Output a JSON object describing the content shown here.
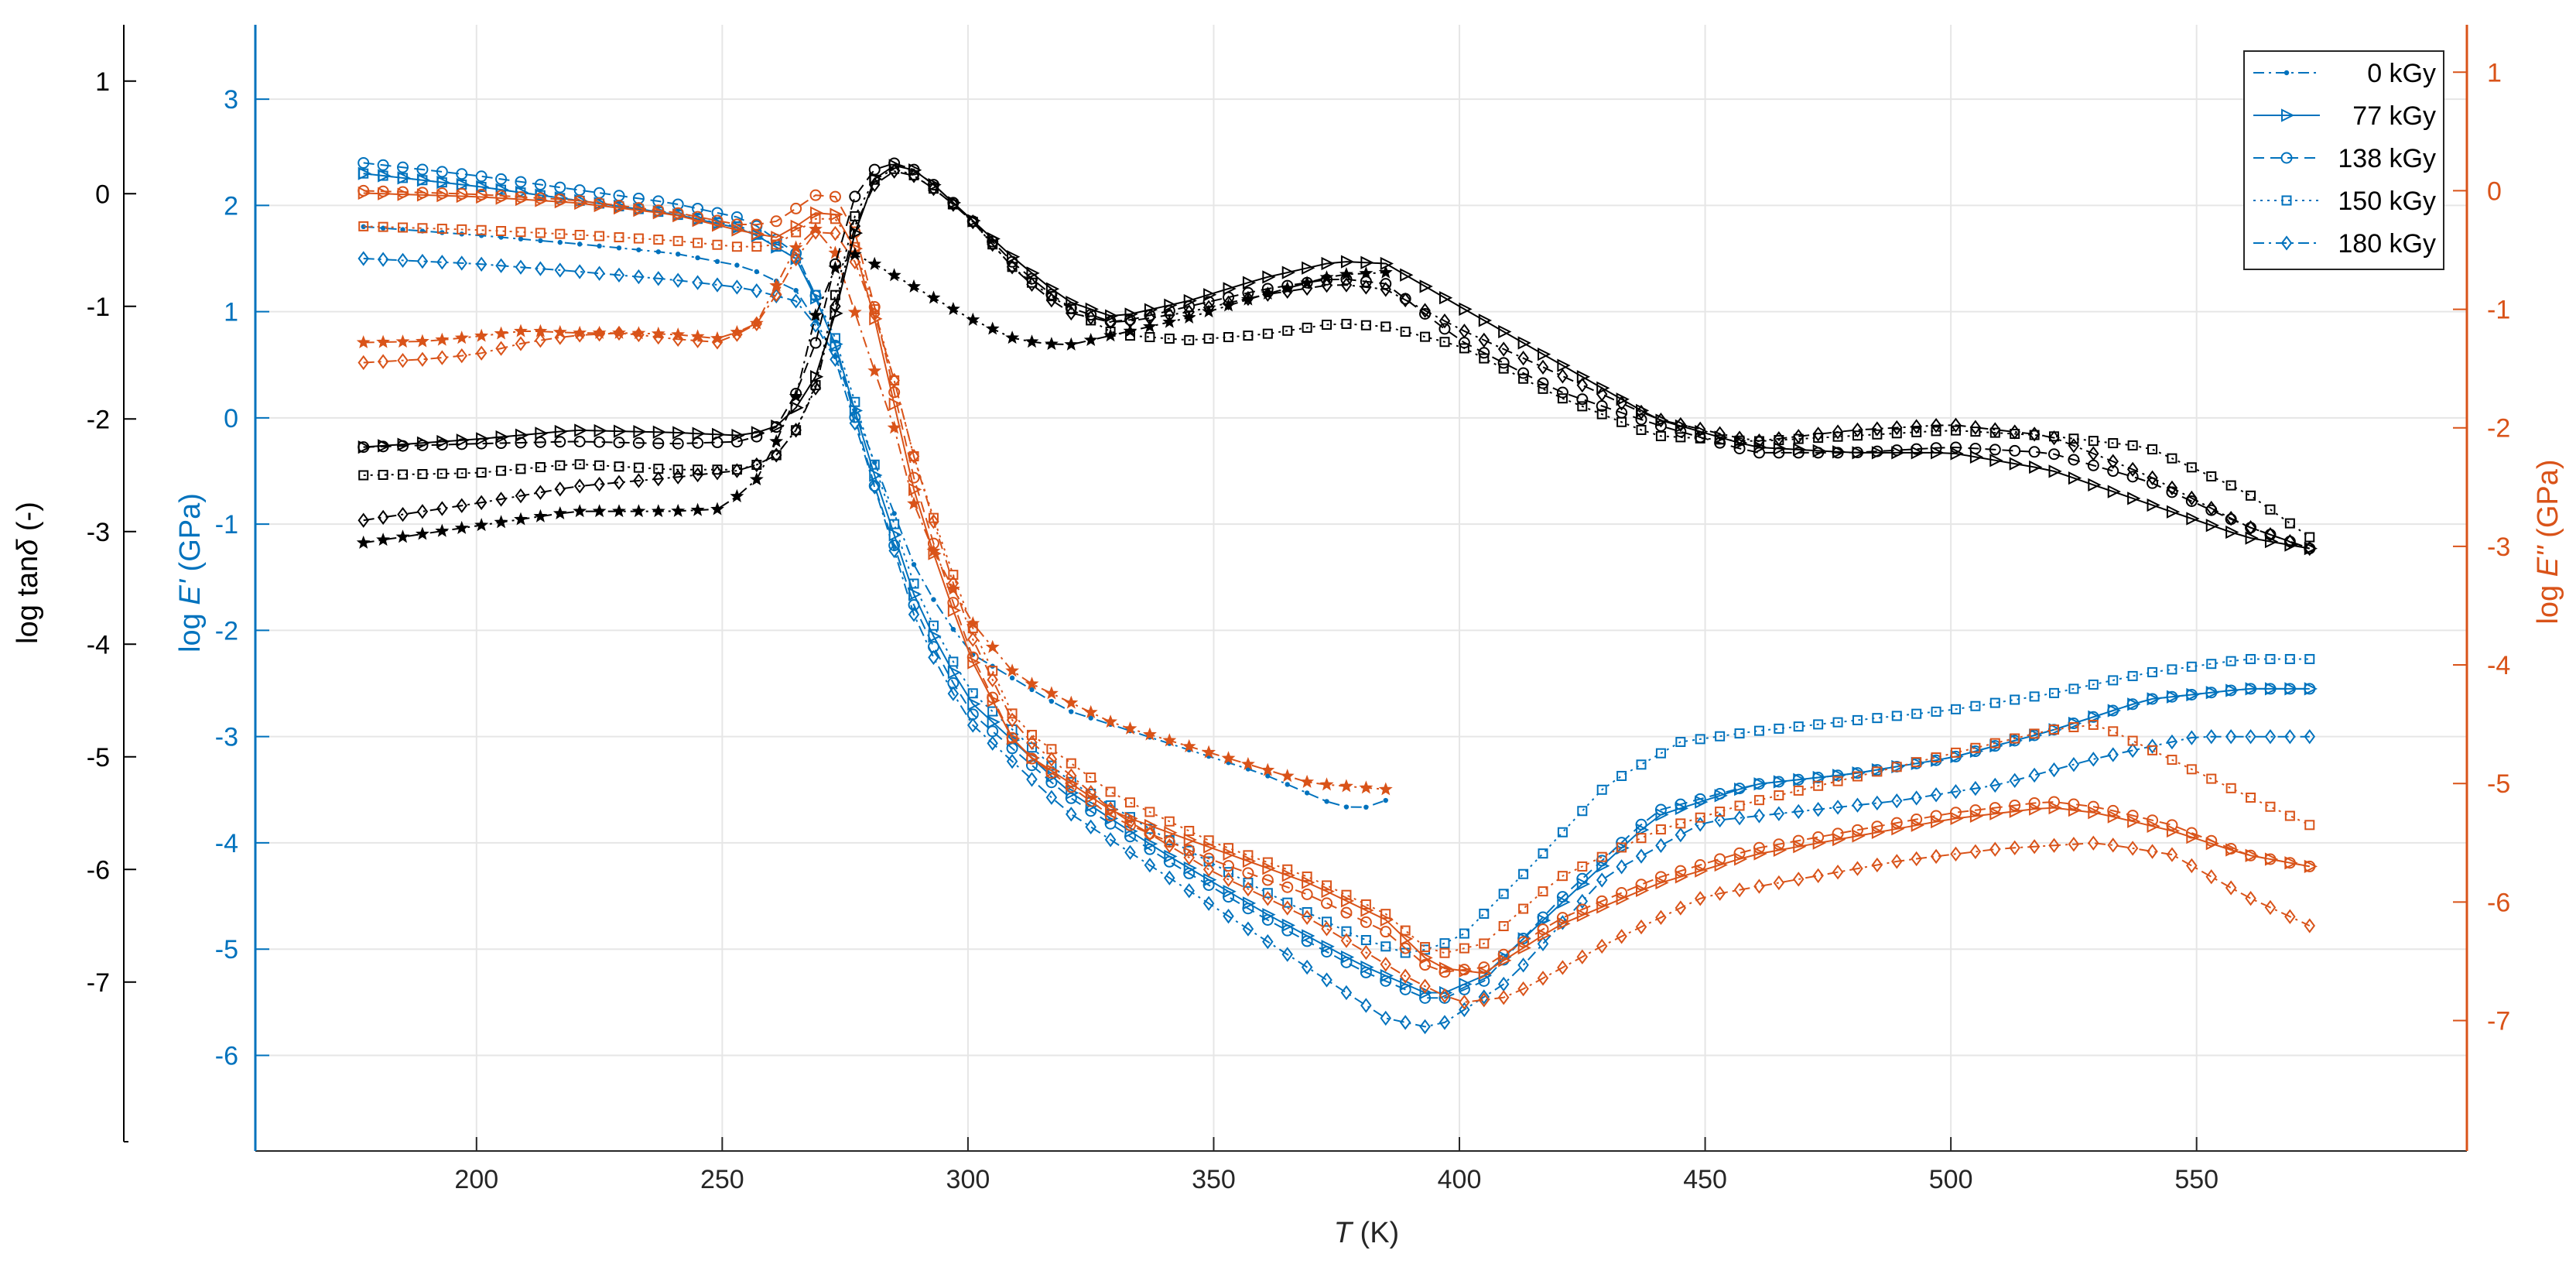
{
  "chart_data": {
    "type": "line",
    "title": "",
    "xlabel_var": "T",
    "xlabel_unit": " (K)",
    "xlim": [
      155,
      605
    ],
    "xticks": [
      200,
      250,
      300,
      350,
      400,
      450,
      500,
      550
    ],
    "axes": {
      "tan": {
        "label_prefix": "log tan",
        "label_var": "δ",
        "label_suffix": " (-)",
        "ylim": [
          -8.5,
          1.5
        ],
        "ticks": [
          1,
          0,
          -1,
          -2,
          -3,
          -4,
          -5,
          -6,
          -7
        ],
        "color": "#000000"
      },
      "E1": {
        "label_prefix": "log ",
        "label_var": "E'",
        "label_suffix": " (GPa)",
        "ylim": [
          -6.9,
          3.7
        ],
        "ticks": [
          3,
          2,
          1,
          0,
          -1,
          -2,
          -3,
          -4,
          -5,
          -6
        ],
        "color": "#0072BD"
      },
      "E2": {
        "label_prefix": "log ",
        "label_var": "E''",
        "label_suffix": " (GPa)",
        "ylim": [
          -8.1,
          1.4
        ],
        "ticks": [
          1,
          0,
          -1,
          -2,
          -3,
          -4,
          -5,
          -6,
          -7
        ],
        "color": "#D95319"
      }
    },
    "legend": {
      "position": "top-right",
      "entries": [
        {
          "label": "0 kGy",
          "marker": "dot",
          "dash": "dashdot"
        },
        {
          "label": "77 kGy",
          "marker": "triangle",
          "dash": "solid"
        },
        {
          "label": "138 kGy",
          "marker": "circle",
          "dash": "dashed"
        },
        {
          "label": "150 kGy",
          "marker": "square",
          "dash": "dotted"
        },
        {
          "label": "180 kGy",
          "marker": "diamond",
          "dash": "dashdot"
        }
      ]
    },
    "series": [
      {
        "name": "0 kGy E'",
        "axis": "E1",
        "marker": "dot",
        "dash": "dashdot",
        "x_range": [
          177,
          385
        ],
        "x": [
          177,
          200,
          220,
          240,
          255,
          265,
          272,
          280,
          290,
          300,
          320,
          340,
          360,
          375,
          380,
          385
        ],
        "y": [
          1.8,
          1.72,
          1.64,
          1.55,
          1.42,
          1.2,
          0.7,
          -0.3,
          -1.5,
          -2.2,
          -2.75,
          -3.05,
          -3.35,
          -3.65,
          -3.68,
          -3.6
        ]
      },
      {
        "name": "77 kGy E'",
        "axis": "E1",
        "marker": "triangle",
        "dash": "solid",
        "x_range": [
          177,
          573
        ],
        "x": [
          177,
          200,
          220,
          240,
          255,
          265,
          272,
          280,
          290,
          300,
          320,
          340,
          360,
          380,
          395,
          405,
          420,
          440,
          460,
          480,
          500,
          520,
          540,
          560,
          573
        ],
        "y": [
          2.3,
          2.18,
          2.05,
          1.92,
          1.77,
          1.5,
          0.85,
          -0.4,
          -1.8,
          -2.65,
          -3.5,
          -4.1,
          -4.65,
          -5.15,
          -5.45,
          -5.25,
          -4.6,
          -3.75,
          -3.45,
          -3.35,
          -3.2,
          -2.95,
          -2.65,
          -2.55,
          -2.55
        ]
      },
      {
        "name": "138 kGy E'",
        "axis": "E1",
        "marker": "circle",
        "dash": "dashed",
        "x_range": [
          177,
          573
        ],
        "x": [
          177,
          200,
          220,
          240,
          255,
          265,
          272,
          280,
          290,
          300,
          320,
          340,
          360,
          380,
          395,
          405,
          420,
          440,
          460,
          480,
          500,
          520,
          540,
          560,
          573
        ],
        "y": [
          2.4,
          2.28,
          2.15,
          2.02,
          1.87,
          1.55,
          0.85,
          -0.5,
          -1.9,
          -2.75,
          -3.55,
          -4.15,
          -4.7,
          -5.2,
          -5.5,
          -5.3,
          -4.55,
          -3.7,
          -3.45,
          -3.35,
          -3.2,
          -2.95,
          -2.65,
          -2.55,
          -2.55
        ]
      },
      {
        "name": "150 kGy E'",
        "axis": "E1",
        "marker": "square",
        "dash": "dotted",
        "x_range": [
          177,
          573
        ],
        "x": [
          177,
          200,
          220,
          240,
          255,
          265,
          272,
          280,
          290,
          300,
          320,
          340,
          360,
          380,
          390,
          400,
          415,
          430,
          445,
          460,
          480,
          500,
          520,
          540,
          560,
          573
        ],
        "y": [
          2.3,
          2.18,
          2.05,
          1.92,
          1.78,
          1.5,
          0.9,
          -0.3,
          -1.7,
          -2.55,
          -3.4,
          -3.95,
          -4.45,
          -4.9,
          -5.05,
          -4.9,
          -4.2,
          -3.45,
          -3.05,
          -2.95,
          -2.85,
          -2.75,
          -2.6,
          -2.4,
          -2.27,
          -2.27
        ]
      },
      {
        "name": "180 kGy E'",
        "axis": "E1",
        "marker": "diamond",
        "dash": "dashdot",
        "x_range": [
          177,
          573
        ],
        "x": [
          177,
          200,
          220,
          240,
          255,
          265,
          272,
          280,
          290,
          300,
          320,
          340,
          360,
          375,
          385,
          395,
          410,
          430,
          450,
          470,
          490,
          510,
          530,
          550,
          573
        ],
        "y": [
          1.5,
          1.45,
          1.38,
          1.3,
          1.22,
          1.1,
          0.7,
          -0.5,
          -2.0,
          -2.85,
          -3.7,
          -4.3,
          -4.9,
          -5.35,
          -5.65,
          -5.75,
          -5.3,
          -4.3,
          -3.8,
          -3.7,
          -3.6,
          -3.45,
          -3.2,
          -3.0,
          -3.0
        ]
      },
      {
        "name": "0 kGy E''",
        "axis": "E2",
        "marker": "star",
        "dash": "dashdot",
        "x_range": [
          177,
          385
        ],
        "x": [
          177,
          190,
          200,
          210,
          220,
          230,
          240,
          250,
          258,
          263,
          268,
          272,
          276,
          280,
          285,
          290,
          300,
          310,
          330,
          350,
          370,
          385
        ],
        "y": [
          -1.28,
          -1.27,
          -1.23,
          -1.18,
          -1.2,
          -1.2,
          -1.21,
          -1.25,
          -1.1,
          -0.6,
          -0.3,
          -0.4,
          -0.9,
          -1.4,
          -2.0,
          -2.8,
          -3.6,
          -4.1,
          -4.5,
          -4.75,
          -5.0,
          -5.05
        ]
      },
      {
        "name": "77 kGy E''",
        "axis": "E2",
        "marker": "triangle",
        "dash": "solid",
        "x_range": [
          177,
          573
        ],
        "x": [
          177,
          200,
          220,
          240,
          255,
          262,
          268,
          272,
          276,
          280,
          285,
          290,
          300,
          310,
          330,
          350,
          370,
          385,
          395,
          405,
          420,
          440,
          460,
          480,
          500,
          520,
          530,
          545,
          560,
          573
        ],
        "y": [
          -0.02,
          -0.05,
          -0.1,
          -0.2,
          -0.35,
          -0.4,
          -0.2,
          -0.15,
          -0.35,
          -0.9,
          -1.8,
          -2.7,
          -3.9,
          -4.7,
          -5.25,
          -5.55,
          -5.85,
          -6.15,
          -6.55,
          -6.6,
          -6.2,
          -5.85,
          -5.6,
          -5.45,
          -5.3,
          -5.2,
          -5.25,
          -5.4,
          -5.6,
          -5.7
        ]
      },
      {
        "name": "138 kGy E''",
        "axis": "E2",
        "marker": "circle",
        "dash": "dashed",
        "x_range": [
          177,
          573
        ],
        "x": [
          177,
          200,
          220,
          240,
          255,
          262,
          268,
          272,
          276,
          280,
          285,
          290,
          300,
          310,
          330,
          350,
          370,
          385,
          395,
          405,
          420,
          440,
          460,
          480,
          500,
          520,
          530,
          545,
          560,
          573
        ],
        "y": [
          0.0,
          -0.03,
          -0.08,
          -0.18,
          -0.3,
          -0.25,
          -0.05,
          0.0,
          -0.2,
          -0.8,
          -1.7,
          -2.6,
          -3.85,
          -4.7,
          -5.3,
          -5.65,
          -5.95,
          -6.25,
          -6.6,
          -6.55,
          -6.15,
          -5.8,
          -5.55,
          -5.4,
          -5.25,
          -5.15,
          -5.2,
          -5.35,
          -5.6,
          -5.7
        ]
      },
      {
        "name": "150 kGy E''",
        "axis": "E2",
        "marker": "square",
        "dash": "dotted",
        "x_range": [
          177,
          573
        ],
        "x": [
          177,
          200,
          220,
          240,
          255,
          262,
          268,
          272,
          276,
          280,
          285,
          290,
          300,
          310,
          330,
          350,
          370,
          385,
          395,
          405,
          420,
          440,
          460,
          480,
          500,
          520,
          530,
          545,
          560,
          573
        ],
        "y": [
          -0.3,
          -0.33,
          -0.37,
          -0.42,
          -0.48,
          -0.45,
          -0.25,
          -0.2,
          -0.35,
          -0.85,
          -1.6,
          -2.4,
          -3.6,
          -4.5,
          -5.1,
          -5.5,
          -5.8,
          -6.1,
          -6.45,
          -6.35,
          -5.8,
          -5.4,
          -5.15,
          -4.95,
          -4.75,
          -4.55,
          -4.5,
          -4.8,
          -5.1,
          -5.35
        ]
      },
      {
        "name": "180 kGy E''",
        "axis": "E2",
        "marker": "diamond",
        "dash": "dashdot",
        "x_range": [
          177,
          573
        ],
        "x": [
          177,
          190,
          200,
          210,
          220,
          230,
          240,
          250,
          258,
          262,
          266,
          270,
          275,
          280,
          285,
          290,
          300,
          310,
          330,
          350,
          370,
          390,
          400,
          410,
          430,
          450,
          470,
          490,
          510,
          530,
          545,
          560,
          573
        ],
        "y": [
          -1.45,
          -1.42,
          -1.38,
          -1.28,
          -1.22,
          -1.2,
          -1.25,
          -1.28,
          -1.1,
          -0.8,
          -0.5,
          -0.3,
          -0.4,
          -0.9,
          -1.6,
          -2.4,
          -3.7,
          -4.55,
          -5.25,
          -5.75,
          -6.15,
          -6.65,
          -6.85,
          -6.8,
          -6.35,
          -5.95,
          -5.8,
          -5.65,
          -5.55,
          -5.5,
          -5.6,
          -5.95,
          -6.2
        ]
      },
      {
        "name": "0 kGy tanδ",
        "axis": "tan",
        "marker": "star",
        "dash": "dashdot",
        "x_range": [
          177,
          385
        ],
        "x": [
          177,
          200,
          220,
          240,
          250,
          258,
          265,
          270,
          275,
          280,
          290,
          300,
          310,
          320,
          330,
          345,
          360,
          375,
          385
        ],
        "y": [
          -3.1,
          -2.95,
          -2.82,
          -2.82,
          -2.8,
          -2.5,
          -1.8,
          -0.9,
          -0.5,
          -0.6,
          -0.85,
          -1.1,
          -1.3,
          -1.35,
          -1.25,
          -1.1,
          -0.9,
          -0.72,
          -0.7
        ]
      },
      {
        "name": "77 kGy tanδ",
        "axis": "tan",
        "marker": "triangle",
        "dash": "solid",
        "x_range": [
          177,
          573
        ],
        "x": [
          177,
          200,
          220,
          240,
          255,
          262,
          268,
          272,
          276,
          280,
          285,
          290,
          300,
          310,
          320,
          330,
          345,
          360,
          375,
          385,
          400,
          420,
          440,
          460,
          480,
          500,
          520,
          540,
          560,
          573
        ],
        "y": [
          -2.25,
          -2.18,
          -2.1,
          -2.12,
          -2.15,
          -2.05,
          -1.75,
          -1.25,
          -0.5,
          0.1,
          0.25,
          0.2,
          -0.2,
          -0.6,
          -0.95,
          -1.1,
          -0.95,
          -0.75,
          -0.6,
          -0.62,
          -1.0,
          -1.5,
          -2.0,
          -2.25,
          -2.3,
          -2.3,
          -2.45,
          -2.75,
          -3.05,
          -3.15
        ]
      },
      {
        "name": "138 kGy tanδ",
        "axis": "tan",
        "marker": "circle",
        "dash": "dashed",
        "x_range": [
          177,
          573
        ],
        "x": [
          177,
          200,
          220,
          240,
          255,
          262,
          268,
          272,
          276,
          280,
          285,
          290,
          300,
          310,
          320,
          330,
          345,
          360,
          375,
          385,
          400,
          420,
          440,
          460,
          480,
          500,
          520,
          540,
          560,
          573
        ],
        "y": [
          -2.25,
          -2.22,
          -2.2,
          -2.22,
          -2.2,
          -2.05,
          -1.5,
          -0.8,
          -0.1,
          0.2,
          0.27,
          0.2,
          -0.2,
          -0.65,
          -1.0,
          -1.15,
          -1.0,
          -0.85,
          -0.75,
          -0.8,
          -1.3,
          -1.75,
          -2.05,
          -2.3,
          -2.3,
          -2.25,
          -2.3,
          -2.55,
          -2.95,
          -3.15
        ]
      },
      {
        "name": "150 kGy tanδ",
        "axis": "tan",
        "marker": "square",
        "dash": "dotted",
        "x_range": [
          177,
          573
        ],
        "x": [
          177,
          200,
          220,
          240,
          255,
          262,
          268,
          272,
          276,
          280,
          285,
          290,
          300,
          310,
          320,
          330,
          345,
          360,
          375,
          385,
          400,
          420,
          440,
          460,
          480,
          500,
          520,
          540,
          560,
          573
        ],
        "y": [
          -2.5,
          -2.48,
          -2.4,
          -2.45,
          -2.45,
          -2.3,
          -1.9,
          -1.1,
          -0.3,
          0.1,
          0.22,
          0.15,
          -0.2,
          -0.7,
          -1.0,
          -1.25,
          -1.3,
          -1.25,
          -1.15,
          -1.18,
          -1.35,
          -1.8,
          -2.15,
          -2.2,
          -2.15,
          -2.1,
          -2.15,
          -2.25,
          -2.65,
          -3.05
        ]
      },
      {
        "name": "180 kGy tanδ",
        "axis": "tan",
        "marker": "diamond",
        "dash": "dashdot",
        "x_range": [
          177,
          573
        ],
        "x": [
          177,
          200,
          220,
          240,
          255,
          262,
          268,
          272,
          276,
          280,
          285,
          290,
          300,
          310,
          320,
          330,
          345,
          360,
          375,
          385,
          400,
          420,
          440,
          460,
          480,
          500,
          520,
          540,
          560,
          573
        ],
        "y": [
          -2.9,
          -2.75,
          -2.6,
          -2.52,
          -2.45,
          -2.3,
          -1.9,
          -1.2,
          -0.4,
          0.05,
          0.2,
          0.15,
          -0.2,
          -0.7,
          -1.05,
          -1.15,
          -1.05,
          -0.9,
          -0.8,
          -0.85,
          -1.2,
          -1.6,
          -2.0,
          -2.2,
          -2.1,
          -2.05,
          -2.15,
          -2.5,
          -2.95,
          -3.15
        ]
      }
    ]
  }
}
